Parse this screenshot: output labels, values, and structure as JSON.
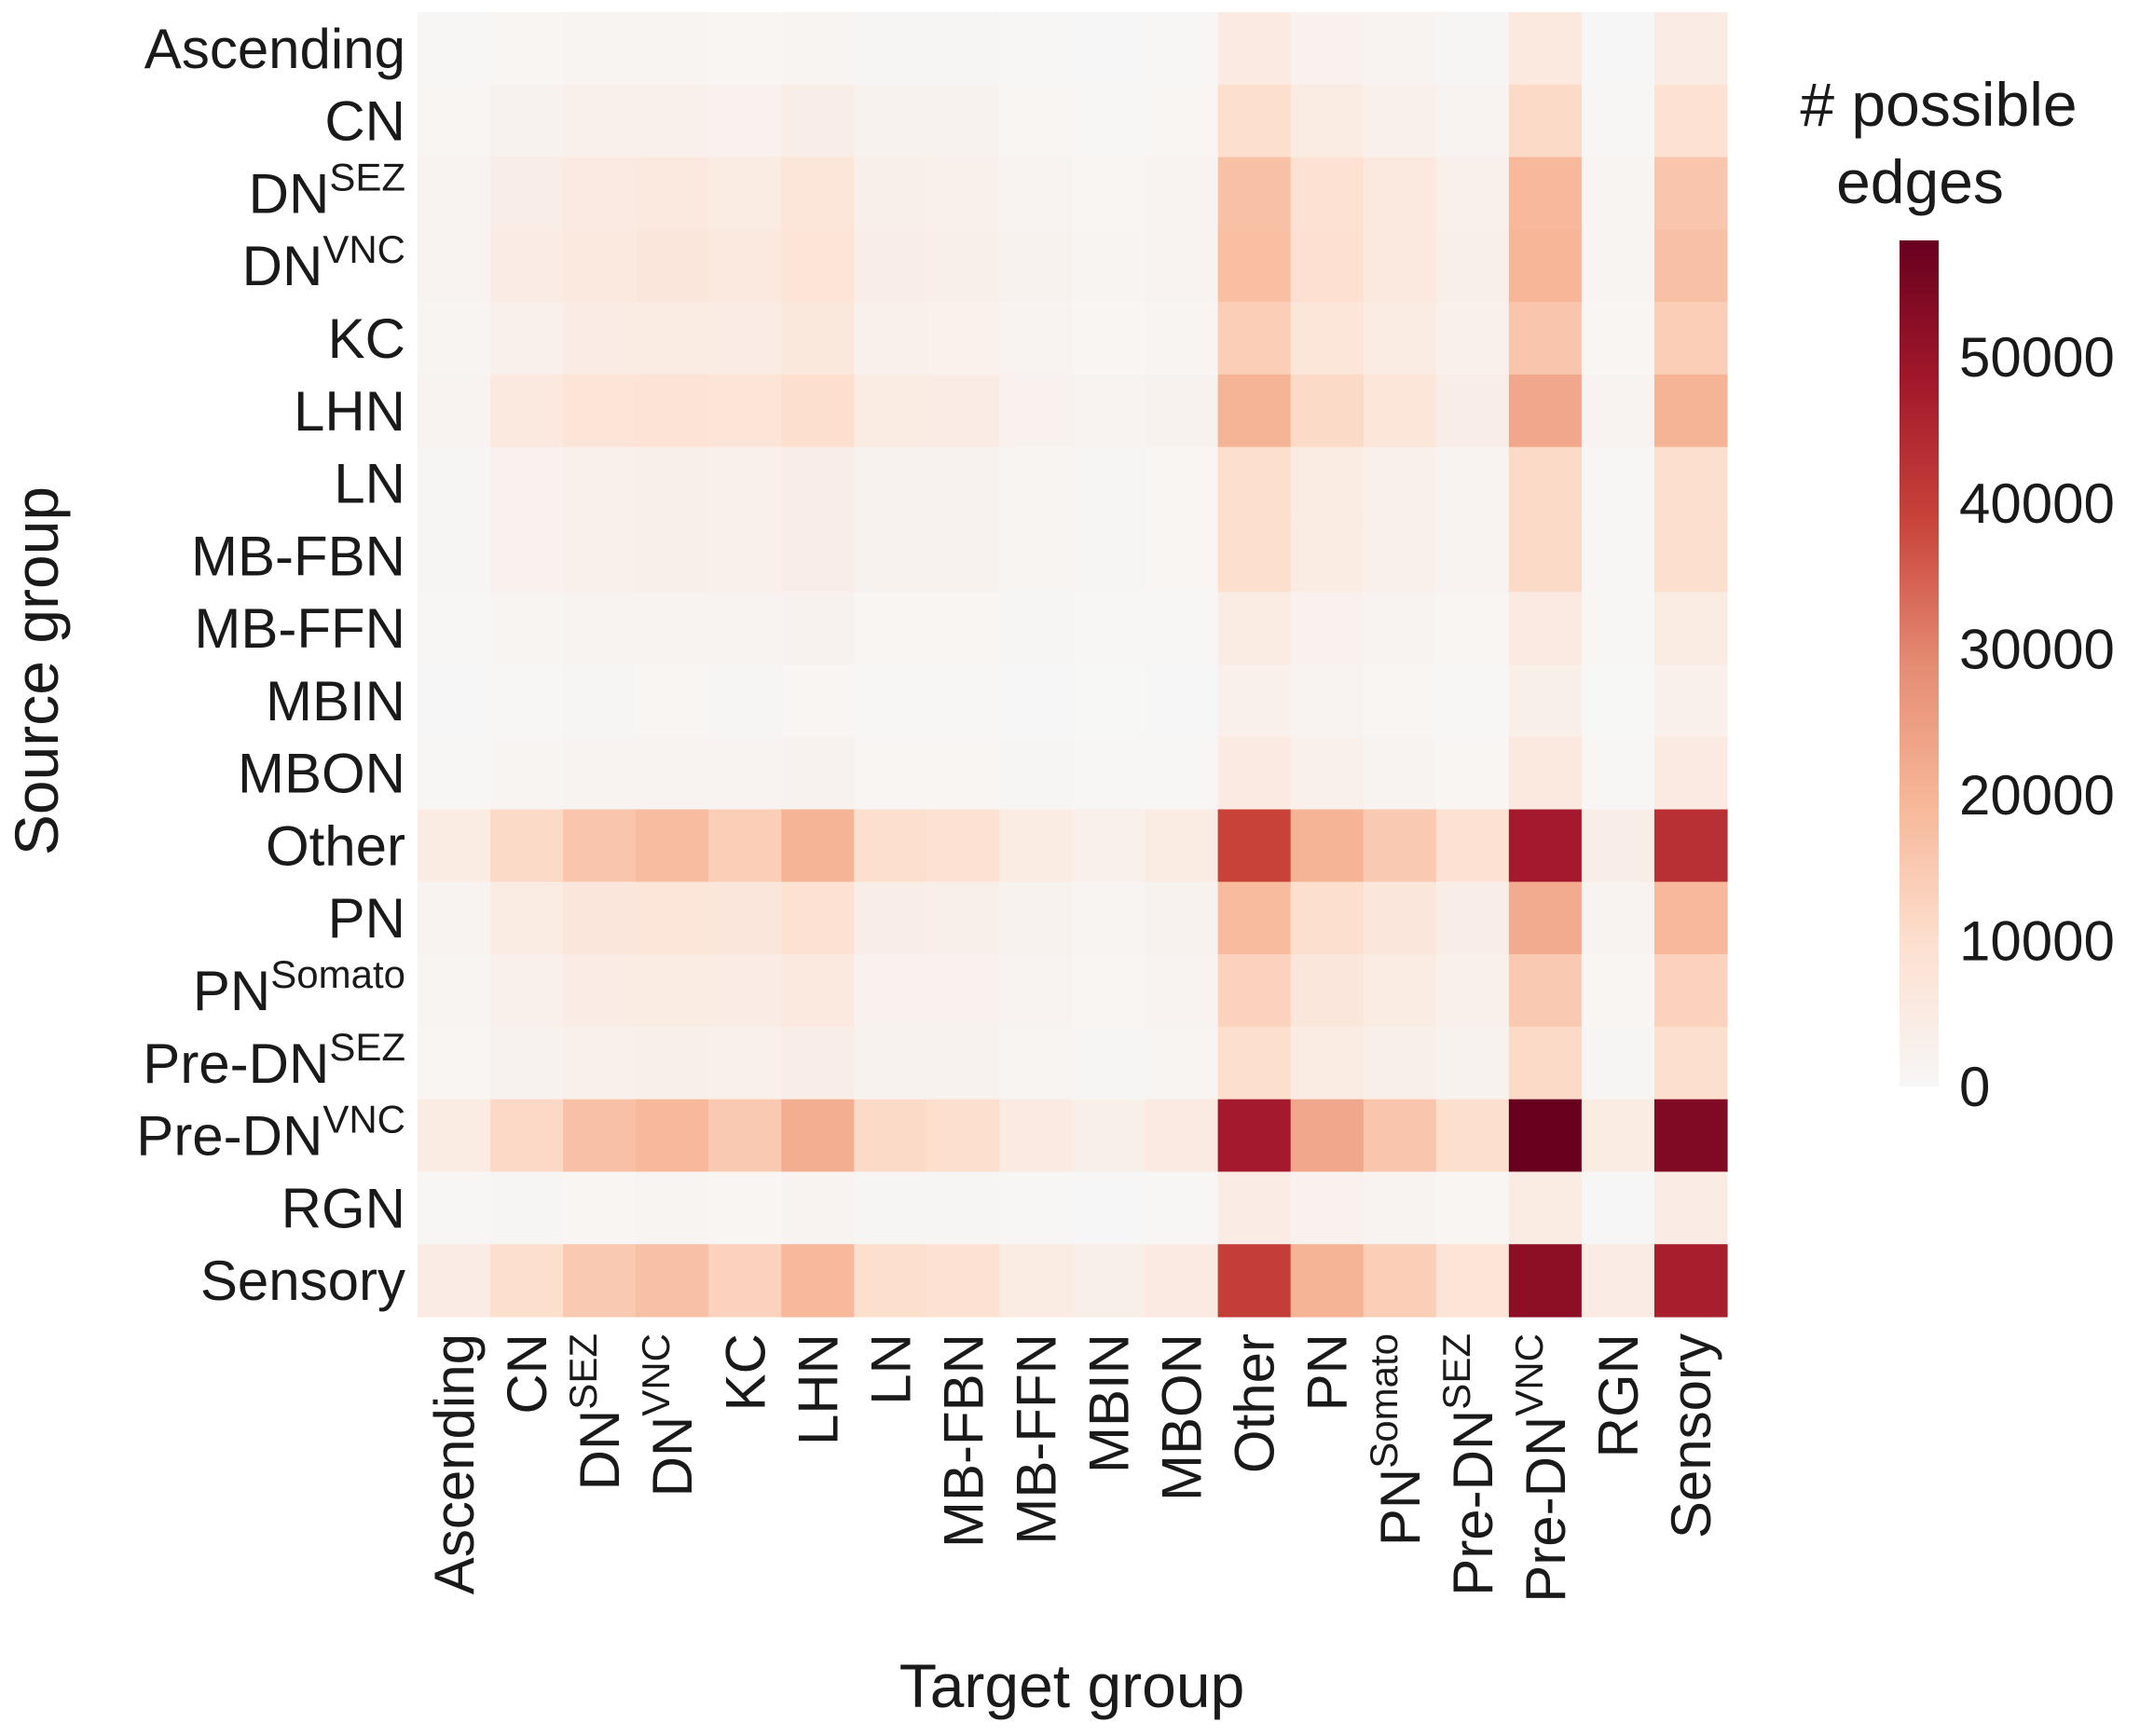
{
  "chart_data": {
    "type": "heatmap",
    "xlabel": "Target group",
    "ylabel": "Source group",
    "colorbar": {
      "title_lines": [
        "# possible",
        "edges"
      ],
      "ticks": [
        "0",
        "10000",
        "20000",
        "30000",
        "40000",
        "50000"
      ],
      "tick_values": [
        0,
        10000,
        20000,
        30000,
        40000,
        50000
      ],
      "vmin": 0,
      "vmax": 58000,
      "colormap": "Reds (white-peach-red-dark red)",
      "color_stops": [
        "#f7f7f7",
        "#fde0d0",
        "#f7b799",
        "#e58c73",
        "#c9443b",
        "#a3182b",
        "#67001f"
      ]
    },
    "row_labels": [
      {
        "base": "Ascending",
        "sup": ""
      },
      {
        "base": "CN",
        "sup": ""
      },
      {
        "base": "DN",
        "sup": "SEZ"
      },
      {
        "base": "DN",
        "sup": "VNC"
      },
      {
        "base": "KC",
        "sup": ""
      },
      {
        "base": "LHN",
        "sup": ""
      },
      {
        "base": "LN",
        "sup": ""
      },
      {
        "base": "MB-FBN",
        "sup": ""
      },
      {
        "base": "MB-FFN",
        "sup": ""
      },
      {
        "base": "MBIN",
        "sup": ""
      },
      {
        "base": "MBON",
        "sup": ""
      },
      {
        "base": "Other",
        "sup": ""
      },
      {
        "base": "PN",
        "sup": ""
      },
      {
        "base": "PN",
        "sup": "Somato"
      },
      {
        "base": "Pre-DN",
        "sup": "SEZ"
      },
      {
        "base": "Pre-DN",
        "sup": "VNC"
      },
      {
        "base": "RGN",
        "sup": ""
      },
      {
        "base": "Sensory",
        "sup": ""
      }
    ],
    "col_labels": [
      {
        "base": "Ascending",
        "sup": ""
      },
      {
        "base": "CN",
        "sup": ""
      },
      {
        "base": "DN",
        "sup": "SEZ"
      },
      {
        "base": "DN",
        "sup": "VNC"
      },
      {
        "base": "KC",
        "sup": ""
      },
      {
        "base": "LHN",
        "sup": ""
      },
      {
        "base": "LN",
        "sup": ""
      },
      {
        "base": "MB-FBN",
        "sup": ""
      },
      {
        "base": "MB-FFN",
        "sup": ""
      },
      {
        "base": "MBIN",
        "sup": ""
      },
      {
        "base": "MBON",
        "sup": ""
      },
      {
        "base": "Other",
        "sup": ""
      },
      {
        "base": "PN",
        "sup": ""
      },
      {
        "base": "PN",
        "sup": "Somato"
      },
      {
        "base": "Pre-DN",
        "sup": "SEZ"
      },
      {
        "base": "Pre-DN",
        "sup": "VNC"
      },
      {
        "base": "RGN",
        "sup": ""
      },
      {
        "base": "Sensory",
        "sup": ""
      }
    ],
    "values": [
      [
        500,
        900,
        1200,
        1200,
        1000,
        1400,
        700,
        700,
        500,
        300,
        400,
        5500,
        2500,
        1500,
        800,
        6000,
        300,
        4500
      ],
      [
        1000,
        2000,
        3000,
        3000,
        2500,
        4000,
        2000,
        2000,
        1000,
        600,
        900,
        10000,
        5000,
        3000,
        1800,
        11000,
        600,
        9000
      ],
      [
        1500,
        4000,
        5500,
        6000,
        5000,
        7500,
        3500,
        3000,
        1800,
        1000,
        1500,
        17000,
        9000,
        6000,
        3000,
        19000,
        1200,
        16000
      ],
      [
        1500,
        4500,
        6000,
        7000,
        6000,
        8000,
        4000,
        3500,
        2000,
        1200,
        1800,
        17500,
        9500,
        6000,
        3500,
        19500,
        1300,
        17000
      ],
      [
        1200,
        3000,
        4500,
        5000,
        4500,
        6500,
        3000,
        2700,
        1500,
        900,
        1300,
        14000,
        7500,
        5000,
        2800,
        16000,
        1000,
        14000
      ],
      [
        1800,
        6000,
        8000,
        8500,
        8000,
        10000,
        5000,
        4500,
        2500,
        1500,
        2200,
        20000,
        11000,
        7500,
        4000,
        23000,
        1800,
        20000
      ],
      [
        800,
        2500,
        3000,
        3500,
        3000,
        4000,
        2000,
        2000,
        1200,
        700,
        1000,
        10000,
        5000,
        3000,
        1800,
        11000,
        600,
        10000
      ],
      [
        800,
        2500,
        3000,
        3500,
        3000,
        4000,
        2000,
        2000,
        1200,
        700,
        1000,
        10000,
        5000,
        3000,
        1800,
        11000,
        600,
        10000
      ],
      [
        500,
        1200,
        1500,
        1700,
        1500,
        2000,
        1000,
        1000,
        700,
        400,
        600,
        5000,
        2500,
        1500,
        1000,
        5500,
        400,
        5000
      ],
      [
        300,
        600,
        800,
        900,
        800,
        1000,
        500,
        500,
        300,
        200,
        300,
        3000,
        1500,
        1000,
        600,
        3500,
        200,
        3000
      ],
      [
        600,
        1200,
        1500,
        1700,
        1500,
        2000,
        1000,
        1000,
        700,
        400,
        600,
        5500,
        3000,
        1800,
        1000,
        6000,
        400,
        5500
      ],
      [
        5000,
        11000,
        16000,
        18000,
        14000,
        20000,
        10000,
        9000,
        5000,
        3000,
        5000,
        39000,
        20000,
        15000,
        9000,
        48000,
        4000,
        43000
      ],
      [
        1500,
        5000,
        7000,
        7500,
        7000,
        9000,
        4000,
        3500,
        2000,
        1200,
        2000,
        18500,
        10000,
        7000,
        4000,
        22000,
        1500,
        19000
      ],
      [
        1200,
        3000,
        4500,
        5000,
        4500,
        6000,
        2500,
        2500,
        1500,
        900,
        1500,
        13000,
        7000,
        5000,
        3000,
        15000,
        1000,
        13000
      ],
      [
        1000,
        2000,
        3000,
        3500,
        3000,
        4000,
        2000,
        2000,
        1200,
        700,
        1200,
        10000,
        5000,
        3500,
        2000,
        11000,
        700,
        10000
      ],
      [
        5000,
        11500,
        17000,
        19000,
        15000,
        21500,
        11000,
        10000,
        5500,
        3500,
        5500,
        48000,
        23000,
        16000,
        10000,
        58000,
        5000,
        54000
      ],
      [
        400,
        800,
        1000,
        1200,
        1000,
        1500,
        700,
        700,
        500,
        300,
        500,
        4500,
        2500,
        1500,
        900,
        5000,
        300,
        4500
      ],
      [
        4500,
        10000,
        15000,
        17000,
        13000,
        19000,
        10000,
        9000,
        5000,
        3500,
        5500,
        40000,
        20000,
        14000,
        8000,
        52000,
        4500,
        47000
      ]
    ]
  }
}
